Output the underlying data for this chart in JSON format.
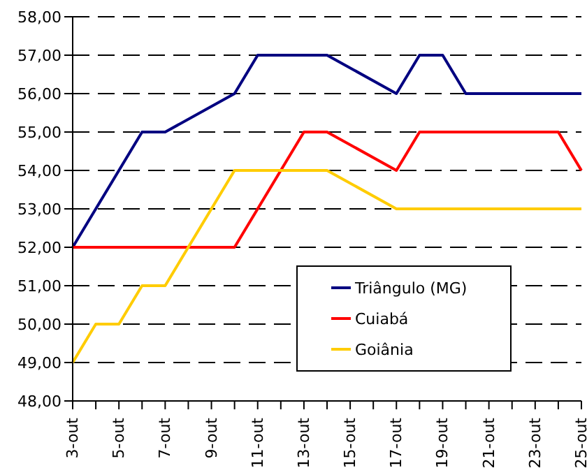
{
  "chart_data": {
    "type": "line",
    "categories": [
      "3-out",
      null,
      "5-out",
      null,
      "7-out",
      null,
      "9-out",
      null,
      "11-out",
      null,
      "13-out",
      null,
      "15-out",
      null,
      "17-out",
      null,
      "19-out",
      null,
      "21-out",
      null,
      "23-out",
      null,
      "25-out"
    ],
    "series": [
      {
        "name": "Triângulo (MG)",
        "color": "#000080",
        "values": [
          52,
          null,
          null,
          55,
          55,
          null,
          null,
          56,
          57,
          null,
          null,
          57,
          null,
          null,
          56,
          57,
          57,
          56,
          null,
          null,
          null,
          null,
          56
        ]
      },
      {
        "name": "Cuiabá",
        "color": "#ff0000",
        "values": [
          52,
          null,
          null,
          null,
          null,
          null,
          null,
          52,
          null,
          null,
          55,
          55,
          null,
          null,
          54,
          55,
          null,
          null,
          null,
          null,
          null,
          55,
          54
        ]
      },
      {
        "name": "Goiânia",
        "color": "#ffcc00",
        "values": [
          49,
          50,
          50,
          51,
          51,
          null,
          null,
          54,
          null,
          null,
          null,
          54,
          null,
          null,
          53,
          null,
          null,
          null,
          null,
          null,
          null,
          null,
          53
        ]
      }
    ],
    "ylim": [
      48,
      58
    ],
    "yticks": [
      {
        "value": 48,
        "label": "48,00"
      },
      {
        "value": 49,
        "label": "49,00"
      },
      {
        "value": 50,
        "label": "50,00"
      },
      {
        "value": 51,
        "label": "51,00"
      },
      {
        "value": 52,
        "label": "52,00"
      },
      {
        "value": 53,
        "label": "53,00"
      },
      {
        "value": 54,
        "label": "54,00"
      },
      {
        "value": 55,
        "label": "55,00"
      },
      {
        "value": 56,
        "label": "56,00"
      },
      {
        "value": 57,
        "label": "57,00"
      },
      {
        "value": 58,
        "label": "58,00"
      }
    ],
    "grid": "y",
    "legend": "bottom right",
    "marker": "none",
    "line_style": "solid"
  }
}
